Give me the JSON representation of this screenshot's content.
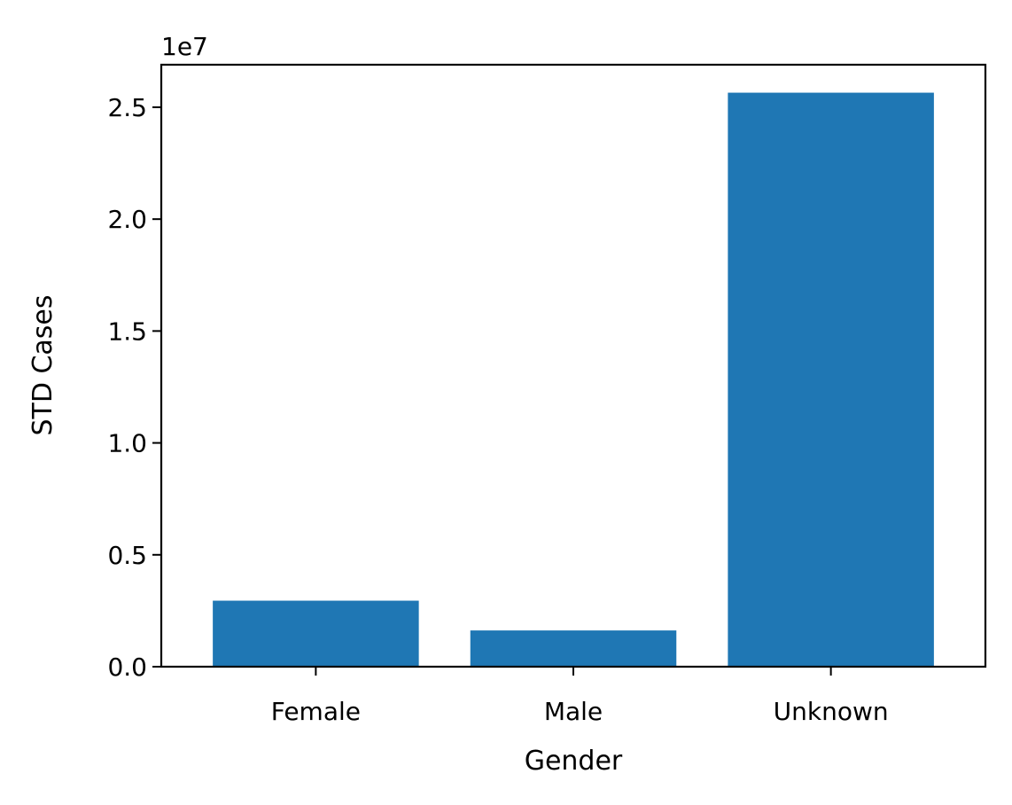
{
  "chart_data": {
    "type": "bar",
    "categories": [
      "Female",
      "Male",
      "Unknown"
    ],
    "values": [
      2950000,
      1620000,
      25650000
    ],
    "title": "",
    "xlabel": "Gender",
    "ylabel": "STD Cases",
    "ylim": [
      0,
      26900000
    ],
    "yticks": [
      0,
      5000000,
      10000000,
      15000000,
      20000000,
      25000000
    ],
    "ytick_labels": [
      "0.0",
      "0.5",
      "1.0",
      "1.5",
      "2.0",
      "2.5"
    ],
    "offset_label": "1e7",
    "bar_color": "#1f77b4",
    "grid": false,
    "legend": "none"
  }
}
